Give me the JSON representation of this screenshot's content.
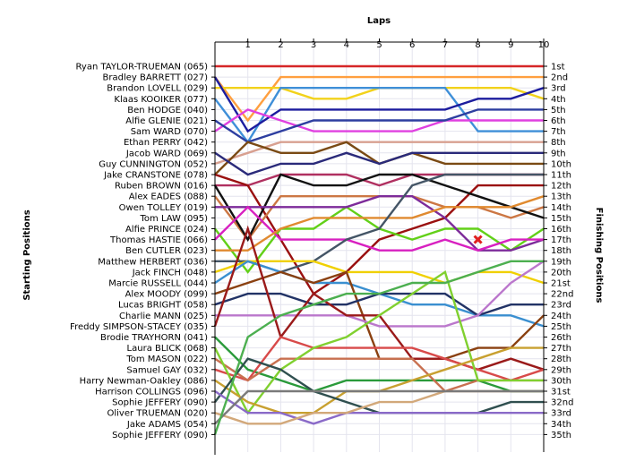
{
  "chart_data": {
    "type": "line",
    "xlabel": "Laps",
    "ylabel_left": "Starting Positions",
    "ylabel_right": "Finishing Positions",
    "laps": [
      "1",
      "2",
      "3",
      "4",
      "5",
      "6",
      "7",
      "8",
      "9",
      "10"
    ],
    "starting_grid": [
      "Ryan TAYLOR-TRUEMAN (065)",
      "Bradley BARRETT (027)",
      "Brandon LOVELL (029)",
      "Klaas KOOIKER (077)",
      "Ben HODGE (040)",
      "Alfie GLENIE (021)",
      "Sam WARD (070)",
      "Ethan PERRY (042)",
      "Jacob WARD (069)",
      "Guy CUNNINGTON (052)",
      "Jake CRANSTONE (078)",
      "Ruben BROWN (016)",
      "Alex EADES (088)",
      "Owen TOLLEY (019)",
      "Tom LAW (095)",
      "Alfie PRINCE (024)",
      "Thomas HASTIE (066)",
      "Ben CUTLER (023)",
      "Matthew HERBERT (036)",
      "Jack FINCH (048)",
      "Marcie RUSSELL (044)",
      "Alex MOODY (099)",
      "Lucas BRIGHT (058)",
      "Charlie MANN (025)",
      "Freddy SIMPSON-STACEY (035)",
      "Brodie TRAYHORN (041)",
      "Laura BLICK (068)",
      "Tom MASON (022)",
      "Samuel GAY (032)",
      "Harry Newman-Oakley (086)",
      "Harrison COLLINGS (096)",
      "Sophie JEFFERY (090)",
      "Oliver TRUEMAN (020)",
      "Jake ADAMS (054)",
      "Sophie JEFFERY (090)"
    ],
    "finishing_labels": [
      "1st",
      "2nd",
      "3rd",
      "4th",
      "5th",
      "6th",
      "7th",
      "8th",
      "9th",
      "10th",
      "11th",
      "12th",
      "13th",
      "14th",
      "15th",
      "16th",
      "17th",
      "18th",
      "19th",
      "20th",
      "21st",
      "22nd",
      "23rd",
      "24th",
      "25th",
      "26th",
      "27th",
      "28th",
      "29th",
      "30th",
      "31st",
      "32nd",
      "33rd",
      "34th",
      "35th"
    ],
    "series": [
      {
        "color": "#d62728",
        "positions": [
          1,
          1,
          1,
          1,
          1,
          1,
          1,
          1,
          1,
          1,
          1
        ]
      },
      {
        "color": "#ff9f3f",
        "positions": [
          2,
          6,
          2,
          2,
          2,
          2,
          2,
          2,
          2,
          2,
          2
        ]
      },
      {
        "color": "#f2d21b",
        "positions": [
          3,
          3,
          3,
          4,
          4,
          3,
          3,
          3,
          3,
          3,
          4
        ]
      },
      {
        "color": "#3f8fd8",
        "positions": [
          4,
          8,
          3,
          3,
          3,
          3,
          3,
          3,
          7,
          7,
          7
        ]
      },
      {
        "color": "#1c1c9e",
        "positions": [
          2,
          7,
          5,
          5,
          5,
          5,
          5,
          5,
          4,
          4,
          3
        ]
      },
      {
        "color": "#e040e0",
        "positions": [
          7,
          5,
          6,
          7,
          7,
          7,
          7,
          6,
          6,
          6,
          6
        ]
      },
      {
        "color": "#2d3ea0",
        "positions": [
          6,
          8,
          7,
          6,
          6,
          6,
          6,
          6,
          5,
          5,
          5
        ]
      },
      {
        "color": "#d8a090",
        "positions": [
          10,
          9,
          8,
          8,
          8,
          8,
          8,
          8,
          8,
          8,
          8
        ]
      },
      {
        "color": "#7a4a14",
        "positions": [
          11,
          8,
          9,
          9,
          8,
          10,
          9,
          10,
          10,
          10,
          10
        ]
      },
      {
        "color": "#2a2a7a",
        "positions": [
          9,
          11,
          10,
          10,
          9,
          10,
          9,
          9,
          9,
          9,
          9
        ]
      },
      {
        "color": "#b03060",
        "positions": [
          12,
          12,
          11,
          11,
          11,
          12,
          11,
          11,
          11,
          11,
          11
        ]
      },
      {
        "color": "#9a1010",
        "positions": [
          11,
          12,
          17,
          22,
          20,
          17,
          16,
          15,
          12,
          12,
          12
        ]
      },
      {
        "color": "#cc7744",
        "positions": [
          13,
          17,
          13,
          13,
          13,
          13,
          13,
          14,
          14,
          15,
          14
        ]
      },
      {
        "color": "#111111",
        "positions": [
          12,
          17,
          11,
          12,
          12,
          11,
          11,
          12,
          13,
          14,
          15
        ]
      },
      {
        "color": "#62d018",
        "positions": [
          16,
          20,
          16,
          16,
          14,
          16,
          17,
          16,
          16,
          18,
          16
        ]
      },
      {
        "color": "#7d2b9a",
        "positions": [
          14,
          14,
          14,
          14,
          14,
          13,
          13,
          15,
          18,
          18,
          17
        ]
      },
      {
        "color": "#d820c0",
        "positions": [
          17,
          14,
          17,
          17,
          17,
          18,
          18,
          17,
          18,
          17,
          17
        ]
      },
      {
        "color": "#e08a30",
        "positions": [
          18,
          18,
          16,
          15,
          15,
          15,
          15,
          14,
          14,
          14,
          13
        ]
      },
      {
        "color": "#445566",
        "positions": [
          19,
          19,
          20,
          19,
          17,
          16,
          12,
          11,
          11,
          11,
          11
        ]
      },
      {
        "color": "#f0d000",
        "positions": [
          20,
          19,
          19,
          19,
          20,
          20,
          20,
          21,
          20,
          20,
          21
        ]
      },
      {
        "color": "#3a8fd0",
        "positions": [
          21,
          19,
          20,
          21,
          21,
          22,
          23,
          23,
          24,
          24,
          25
        ]
      },
      {
        "color": "#8a4010",
        "positions": [
          22,
          21,
          20,
          21,
          20,
          28,
          28,
          28,
          27,
          27,
          24
        ]
      },
      {
        "color": "#223366",
        "positions": [
          23,
          22,
          22,
          23,
          23,
          22,
          22,
          22,
          24,
          23,
          23
        ]
      },
      {
        "color": "#bb77cc",
        "positions": [
          24,
          24,
          24,
          24,
          24,
          25,
          25,
          25,
          24,
          21,
          19
        ]
      },
      {
        "color": "#9a1a1a",
        "positions": [
          25,
          16,
          26,
          22,
          24,
          24,
          28,
          28,
          29,
          28,
          29
        ]
      },
      {
        "color": "#2a9a3a",
        "positions": [
          26,
          29,
          30,
          31,
          30,
          30,
          30,
          30,
          30,
          31,
          31
        ]
      },
      {
        "color": "#d84a4a",
        "positions": [
          29,
          30,
          26,
          27,
          27,
          27,
          27,
          28,
          29,
          30,
          29
        ]
      },
      {
        "color": "#c87050",
        "positions": [
          28,
          30,
          28,
          28,
          28,
          28,
          28,
          31,
          30,
          30,
          30
        ]
      },
      {
        "color": "#80d030",
        "positions": [
          27,
          33,
          29,
          27,
          26,
          24,
          22,
          20,
          30,
          30,
          30
        ]
      },
      {
        "color": "#c8a030",
        "positions": [
          30,
          32,
          33,
          33,
          31,
          31,
          30,
          29,
          28,
          27,
          27
        ]
      },
      {
        "color": "#2f4f4f",
        "positions": [
          32,
          28,
          29,
          31,
          32,
          33,
          33,
          33,
          33,
          32,
          32
        ]
      },
      {
        "color": "#8a6ac8",
        "positions": [
          31,
          33,
          33,
          34,
          33,
          33,
          33,
          33,
          33,
          33,
          33
        ]
      },
      {
        "color": "#d2a87a",
        "positions": [
          33,
          34,
          34,
          33,
          33,
          32,
          32,
          31,
          31,
          31,
          31
        ]
      },
      {
        "color": "#7a7a7a",
        "positions": [
          34,
          31,
          31,
          31,
          31,
          31,
          31,
          31,
          31,
          31,
          31
        ]
      },
      {
        "color": "#4caf50",
        "positions": [
          35,
          26,
          24,
          23,
          22,
          22,
          21,
          21,
          20,
          19,
          19
        ]
      }
    ],
    "retired_marker": {
      "lap": 8,
      "position": 17,
      "color": "#e02020"
    }
  }
}
